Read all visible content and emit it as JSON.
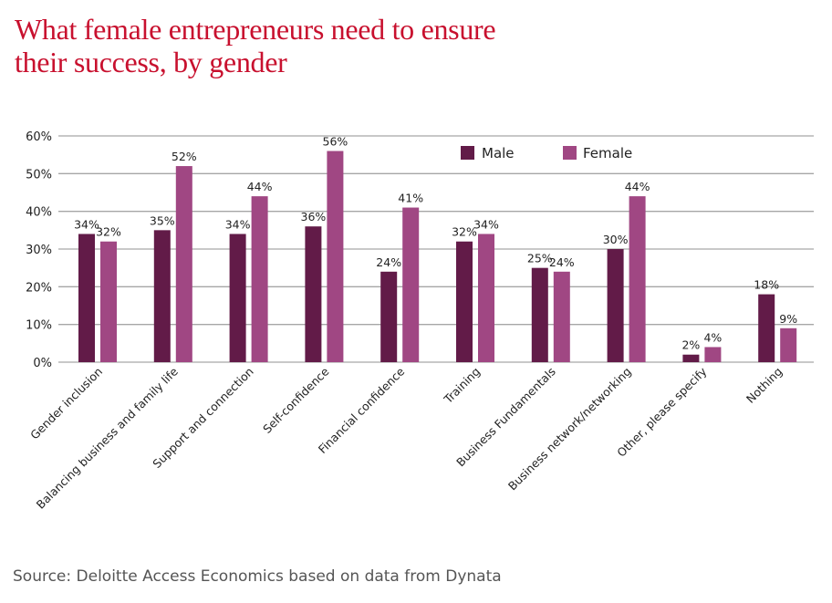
{
  "title_lines": [
    "What female entrepreneurs need to ensure",
    "their success, by gender"
  ],
  "source": "Source: Deloitte Access Economics based on data from Dynata",
  "colors": {
    "male": "#621b48",
    "female": "#a04783",
    "title": "#c8102e",
    "grid": "#a6a6a6",
    "source_text": "#555555"
  },
  "chart_data": {
    "type": "bar",
    "title": "What female entrepreneurs need to ensure their success, by gender",
    "xlabel": "",
    "ylabel": "",
    "ylim": [
      0,
      60
    ],
    "yticks": [
      "0%",
      "10%",
      "20%",
      "30%",
      "40%",
      "50%",
      "60%"
    ],
    "ytick_values": [
      0,
      10,
      20,
      30,
      40,
      50,
      60
    ],
    "grid": true,
    "legend_position": "top-right",
    "categories": [
      "Gender inclusion",
      "Balancing business and family life",
      "Support and connection",
      "Self-confidence",
      "Financial confidence",
      "Training",
      "Business Fundamentals",
      "Business network/networking",
      "Other, please specify",
      "Nothing"
    ],
    "series": [
      {
        "name": "Male",
        "values": [
          34,
          35,
          34,
          36,
          24,
          32,
          25,
          30,
          2,
          18
        ],
        "labels": [
          "34%",
          "35%",
          "34%",
          "36%",
          "24%",
          "32%",
          "25%",
          "30%",
          "2%",
          "18%"
        ]
      },
      {
        "name": "Female",
        "values": [
          32,
          52,
          44,
          56,
          41,
          34,
          24,
          44,
          4,
          9
        ],
        "labels": [
          "32%",
          "52%",
          "44%",
          "56%",
          "41%",
          "34%",
          "24%",
          "44%",
          "4%",
          "9%"
        ]
      }
    ]
  }
}
